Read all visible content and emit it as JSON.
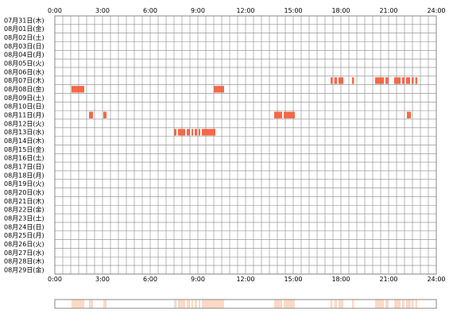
{
  "chart_data": {
    "type": "heatmap",
    "title": "",
    "xlabel": "",
    "ylabel": "",
    "x_ticks": [
      "0:00",
      "3:00",
      "6:00",
      "9:00",
      "12:00",
      "15:00",
      "18:00",
      "21:00",
      "24:00"
    ],
    "x_range_hours": [
      0,
      24
    ],
    "grid": true,
    "colors": {
      "active": "#ff6644",
      "summary": "#ffd9c6",
      "grid": "#888888",
      "frame": "#888888",
      "background": "#ffffff"
    },
    "rows": [
      {
        "label": "07月31日(木)",
        "segments": []
      },
      {
        "label": "08月01日(金)",
        "segments": []
      },
      {
        "label": "08月02日(土)",
        "segments": []
      },
      {
        "label": "08月03日(日)",
        "segments": []
      },
      {
        "label": "08月04日(月)",
        "segments": []
      },
      {
        "label": "08月05日(火)",
        "segments": []
      },
      {
        "label": "08月06日(水)",
        "segments": []
      },
      {
        "label": "08月07日(木)",
        "segments": [
          [
            17.35,
            17.47
          ],
          [
            17.58,
            17.75
          ],
          [
            17.85,
            18.15
          ],
          [
            18.7,
            18.82
          ],
          [
            20.15,
            20.7
          ],
          [
            20.8,
            21.0
          ],
          [
            21.35,
            21.75
          ],
          [
            21.85,
            22.0
          ],
          [
            22.1,
            22.35
          ],
          [
            22.45,
            22.58
          ],
          [
            22.68,
            22.8
          ]
        ]
      },
      {
        "label": "08月08日(金)",
        "segments": [
          [
            1.05,
            1.85
          ],
          [
            10.0,
            10.65
          ]
        ]
      },
      {
        "label": "08月09日(土)",
        "segments": []
      },
      {
        "label": "08月10日(日)",
        "segments": []
      },
      {
        "label": "08月11日(月)",
        "segments": [
          [
            2.15,
            2.4
          ],
          [
            3.05,
            3.25
          ],
          [
            13.8,
            14.3
          ],
          [
            14.4,
            15.1
          ],
          [
            22.15,
            22.4
          ]
        ]
      },
      {
        "label": "08月12日(火)",
        "segments": []
      },
      {
        "label": "08月13日(水)",
        "segments": [
          [
            7.5,
            7.65
          ],
          [
            7.75,
            8.2
          ],
          [
            8.3,
            8.5
          ],
          [
            8.6,
            8.7
          ],
          [
            8.8,
            8.95
          ],
          [
            9.05,
            9.15
          ],
          [
            9.25,
            10.1
          ]
        ]
      },
      {
        "label": "08月14日(木)",
        "segments": []
      },
      {
        "label": "08月15日(金)",
        "segments": []
      },
      {
        "label": "08月16日(土)",
        "segments": []
      },
      {
        "label": "08月17日(日)",
        "segments": []
      },
      {
        "label": "08月18日(月)",
        "segments": []
      },
      {
        "label": "08月19日(火)",
        "segments": []
      },
      {
        "label": "08月20日(水)",
        "segments": []
      },
      {
        "label": "08月21日(木)",
        "segments": []
      },
      {
        "label": "08月22日(金)",
        "segments": []
      },
      {
        "label": "08月23日(土)",
        "segments": []
      },
      {
        "label": "08月24日(日)",
        "segments": []
      },
      {
        "label": "08月25日(月)",
        "segments": []
      },
      {
        "label": "08月26日(火)",
        "segments": []
      },
      {
        "label": "08月27日(水)",
        "segments": []
      },
      {
        "label": "08月28日(木)",
        "segments": []
      },
      {
        "label": "08月29日(金)",
        "segments": []
      }
    ]
  }
}
